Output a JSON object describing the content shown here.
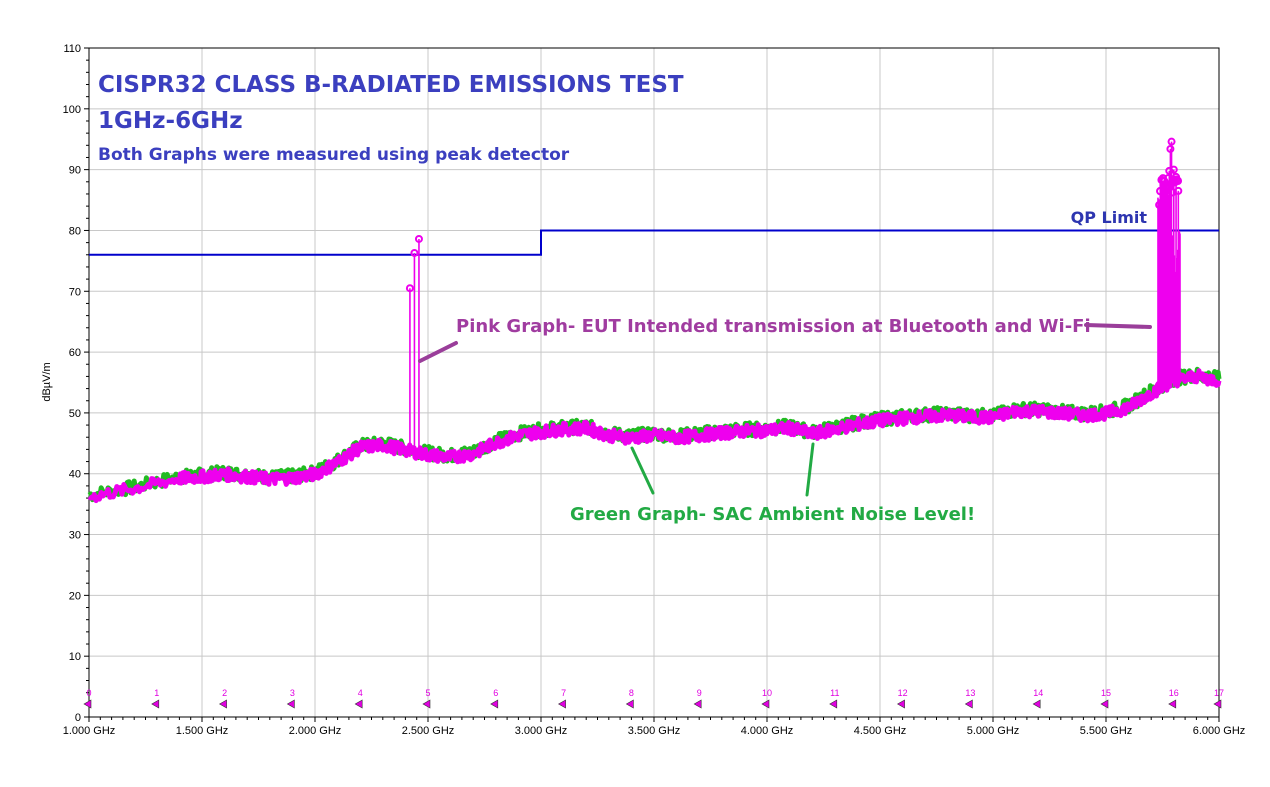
{
  "chart_data": {
    "type": "line",
    "title": "CISPR32 CLASS B-RADIATED EMISSIONS TEST",
    "subtitle": "1GHz-6GHz",
    "note": "Both Graphs were measured using peak detector",
    "xlabel": "",
    "ylabel": "dBµV/m",
    "xlim": [
      1.0,
      6.0
    ],
    "ylim": [
      0,
      110
    ],
    "grid": true,
    "x_tick_values": [
      1.0,
      1.5,
      2.0,
      2.5,
      3.0,
      3.5,
      4.0,
      4.5,
      5.0,
      5.5,
      6.0
    ],
    "x_tick_labels": [
      "1.000 GHz",
      "1.500 GHz",
      "2.000 GHz",
      "2.500 GHz",
      "3.000 GHz",
      "3.500 GHz",
      "4.000 GHz",
      "4.500 GHz",
      "5.000 GHz",
      "5.500 GHz",
      "6.000 GHz"
    ],
    "y_ticks": [
      0,
      10,
      20,
      30,
      40,
      50,
      60,
      70,
      80,
      90,
      100,
      110
    ],
    "series": [
      {
        "name": "QP Limit",
        "color": "#0000cc",
        "x": [
          1.0,
          3.0,
          3.0,
          6.0
        ],
        "y": [
          76,
          76,
          80,
          80
        ]
      },
      {
        "name": "Green Graph- SAC Ambient Noise Level!",
        "color": "#22bb22",
        "x": [
          1.0,
          1.2,
          1.4,
          1.5,
          1.6,
          1.7,
          1.8,
          1.9,
          2.0,
          2.1,
          2.2,
          2.3,
          2.4,
          2.5,
          2.6,
          2.7,
          2.8,
          2.9,
          3.0,
          3.1,
          3.2,
          3.3,
          3.4,
          3.5,
          3.6,
          3.7,
          3.8,
          3.9,
          4.0,
          4.1,
          4.2,
          4.3,
          4.4,
          4.5,
          4.6,
          4.7,
          4.8,
          4.9,
          5.0,
          5.1,
          5.2,
          5.3,
          5.4,
          5.5,
          5.6,
          5.7,
          5.8,
          5.9,
          6.0
        ],
        "y": [
          36.5,
          37.8,
          39.5,
          39.8,
          40.2,
          39.8,
          39.4,
          39.6,
          40.2,
          42.2,
          44.6,
          45.0,
          44.2,
          43.4,
          43.0,
          43.6,
          45.4,
          46.6,
          47.2,
          47.6,
          47.8,
          46.6,
          46.2,
          46.6,
          46.2,
          46.6,
          47.0,
          47.3,
          47.4,
          47.8,
          46.8,
          47.6,
          48.4,
          49.0,
          49.4,
          49.7,
          49.9,
          49.6,
          49.5,
          50.6,
          50.6,
          50.2,
          49.9,
          50.2,
          51.2,
          53.6,
          55.6,
          56.3,
          55.6
        ]
      },
      {
        "name": "Pink Graph- EUT Intended transmission at Bluetooth and Wi-Fi",
        "color": "#ee00ee",
        "x": [
          1.0,
          1.2,
          1.4,
          1.5,
          1.6,
          1.7,
          1.8,
          1.9,
          2.0,
          2.1,
          2.2,
          2.3,
          2.4,
          2.5,
          2.6,
          2.7,
          2.8,
          2.9,
          3.0,
          3.1,
          3.2,
          3.3,
          3.4,
          3.5,
          3.6,
          3.7,
          3.8,
          3.9,
          4.0,
          4.1,
          4.2,
          4.3,
          4.4,
          4.5,
          4.6,
          4.7,
          4.8,
          4.9,
          5.0,
          5.1,
          5.2,
          5.3,
          5.4,
          5.5,
          5.6,
          5.7,
          5.8,
          5.9,
          6.0
        ],
        "y": [
          36.2,
          37.6,
          39.2,
          39.5,
          39.9,
          39.5,
          39.1,
          39.3,
          39.9,
          41.9,
          44.3,
          44.7,
          43.9,
          43.1,
          42.7,
          43.3,
          45.1,
          46.3,
          46.9,
          47.3,
          47.5,
          46.3,
          45.9,
          46.3,
          45.9,
          46.3,
          46.7,
          47.0,
          47.1,
          47.5,
          46.5,
          47.3,
          48.1,
          48.7,
          49.1,
          49.4,
          49.6,
          49.3,
          49.2,
          50.3,
          50.3,
          49.9,
          49.6,
          49.9,
          50.9,
          53.3,
          55.3,
          56.0,
          55.3
        ]
      }
    ],
    "peaks": [
      {
        "x": 2.42,
        "y": 70.5
      },
      {
        "x": 2.44,
        "y": 76.3
      },
      {
        "x": 2.46,
        "y": 78.6
      },
      {
        "x": 5.735,
        "y": 84.2
      },
      {
        "x": 5.75,
        "y": 88.2
      },
      {
        "x": 5.765,
        "y": 87.0
      },
      {
        "x": 5.78,
        "y": 89.8
      },
      {
        "x": 5.785,
        "y": 93.4
      },
      {
        "x": 5.79,
        "y": 94.6
      },
      {
        "x": 5.8,
        "y": 90.0
      },
      {
        "x": 5.81,
        "y": 88.8
      },
      {
        "x": 5.82,
        "y": 86.5
      }
    ],
    "markers": {
      "labels": [
        "0",
        "1",
        "2",
        "3",
        "4",
        "5",
        "6",
        "7",
        "8",
        "9",
        "10",
        "11",
        "12",
        "13",
        "14",
        "15",
        "16",
        "17"
      ],
      "x": [
        1.0,
        1.3,
        1.6,
        1.9,
        2.2,
        2.5,
        2.8,
        3.1,
        3.4,
        3.7,
        4.0,
        4.3,
        4.6,
        4.9,
        5.2,
        5.5,
        5.8,
        6.0
      ]
    },
    "annotations": {
      "limit": "QP Limit",
      "pink": "Pink Graph- EUT Intended transmission at Bluetooth and Wi-Fi",
      "green": "Green Graph- SAC Ambient Noise Level!"
    }
  }
}
